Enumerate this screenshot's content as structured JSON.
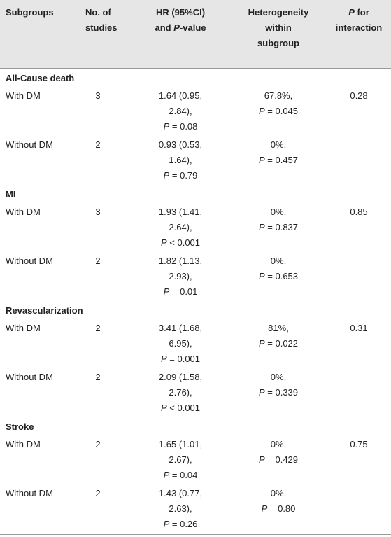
{
  "header": {
    "subgroups": "Subgroups",
    "studies": [
      "No. of",
      "studies"
    ],
    "hr": {
      "line1": "HR (95%CI)",
      "line2_pre": "and ",
      "line2_p": "P",
      "line2_post": "-value"
    },
    "heterogeneity": [
      "Heterogeneity",
      "within",
      "subgroup"
    ],
    "interaction": [
      "P for",
      "interaction"
    ]
  },
  "sections": [
    {
      "title": "All-Cause death",
      "rows": [
        {
          "subgroup": "With DM",
          "studies": "3",
          "hr": [
            "1.64 (0.95,",
            "2.84),",
            "P = 0.08"
          ],
          "heterogeneity": [
            "67.8%,",
            "P = 0.045"
          ],
          "interaction": "0.28"
        },
        {
          "subgroup": "Without DM",
          "studies": "2",
          "hr": [
            "0.93 (0.53,",
            "1.64),",
            "P = 0.79"
          ],
          "heterogeneity": [
            "0%,",
            "P = 0.457"
          ]
        }
      ]
    },
    {
      "title": "MI",
      "rows": [
        {
          "subgroup": "With DM",
          "studies": "3",
          "hr": [
            "1.93 (1.41,",
            "2.64),",
            "P < 0.001"
          ],
          "heterogeneity": [
            "0%,",
            "P = 0.837"
          ],
          "interaction": "0.85"
        },
        {
          "subgroup": "Without DM",
          "studies": "2",
          "hr": [
            "1.82 (1.13,",
            "2.93),",
            "P = 0.01"
          ],
          "heterogeneity": [
            "0%,",
            "P = 0.653"
          ]
        }
      ]
    },
    {
      "title": "Revascularization",
      "rows": [
        {
          "subgroup": "With DM",
          "studies": "2",
          "hr": [
            "3.41 (1.68,",
            "6.95),",
            "P = 0.001"
          ],
          "heterogeneity": [
            "81%,",
            "P = 0.022"
          ],
          "interaction": "0.31"
        },
        {
          "subgroup": "Without DM",
          "studies": "2",
          "hr": [
            "2.09 (1.58,",
            "2.76),",
            "P < 0.001"
          ],
          "heterogeneity": [
            "0%,",
            "P = 0.339"
          ]
        }
      ]
    },
    {
      "title": "Stroke",
      "rows": [
        {
          "subgroup": "With DM",
          "studies": "2",
          "hr": [
            "1.65 (1.01,",
            "2.67),",
            "P = 0.04"
          ],
          "heterogeneity": [
            "0%,",
            "P = 0.429"
          ],
          "interaction": "0.75"
        },
        {
          "subgroup": "Without DM",
          "studies": "2",
          "hr": [
            "1.43 (0.77,",
            "2.63),",
            "P = 0.26"
          ],
          "heterogeneity": [
            "0%,",
            "P = 0.80"
          ]
        }
      ]
    }
  ]
}
